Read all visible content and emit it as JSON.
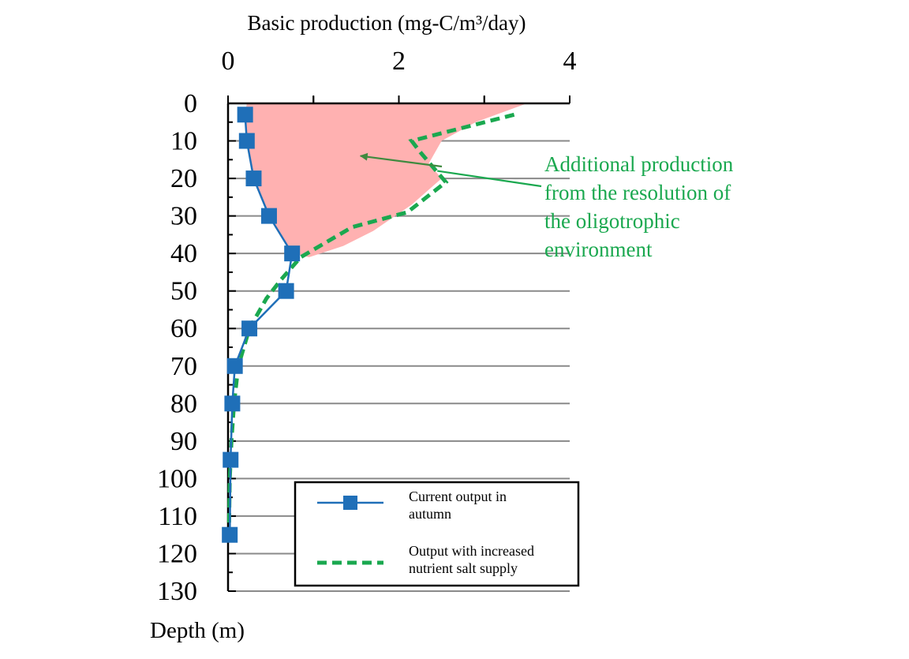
{
  "chart_data": {
    "type": "line",
    "title": "",
    "xlabel": "Basic production (mg-C/m³/day)",
    "ylabel": "Depth (m)",
    "x_axis_position": "top",
    "y_axis_inverted": true,
    "xlim": [
      0,
      4
    ],
    "ylim": [
      0,
      130
    ],
    "x_ticks": [
      "0",
      "2",
      "4"
    ],
    "y_ticks": [
      "0",
      "10",
      "20",
      "30",
      "40",
      "50",
      "60",
      "70",
      "80",
      "90",
      "100",
      "110",
      "120",
      "130"
    ],
    "grid": "horizontal",
    "colors": {
      "current": "#1f6fb8",
      "increased": "#1aa84f",
      "fill": "#ffb1b1",
      "annotation_arrow": "#3f8a3f"
    },
    "series": [
      {
        "name": "Current output in autumn",
        "style": "solid-square-markers",
        "points": [
          {
            "x": 0.2,
            "depth": 3
          },
          {
            "x": 0.22,
            "depth": 10
          },
          {
            "x": 0.3,
            "depth": 20
          },
          {
            "x": 0.48,
            "depth": 30
          },
          {
            "x": 0.75,
            "depth": 40
          },
          {
            "x": 0.68,
            "depth": 50
          },
          {
            "x": 0.25,
            "depth": 60
          },
          {
            "x": 0.08,
            "depth": 70
          },
          {
            "x": 0.05,
            "depth": 80
          },
          {
            "x": 0.03,
            "depth": 95
          },
          {
            "x": 0.02,
            "depth": 115
          }
        ]
      },
      {
        "name": "Output with increased nutrient salt supply",
        "style": "dashed",
        "points": [
          {
            "x": 3.35,
            "depth": 3
          },
          {
            "x": 2.15,
            "depth": 10
          },
          {
            "x": 2.25,
            "depth": 13
          },
          {
            "x": 2.55,
            "depth": 21
          },
          {
            "x": 2.1,
            "depth": 29
          },
          {
            "x": 1.45,
            "depth": 33
          },
          {
            "x": 0.85,
            "depth": 41
          },
          {
            "x": 0.62,
            "depth": 47
          },
          {
            "x": 0.45,
            "depth": 52
          },
          {
            "x": 0.25,
            "depth": 60
          },
          {
            "x": 0.12,
            "depth": 70
          },
          {
            "x": 0.07,
            "depth": 80
          },
          {
            "x": 0.04,
            "depth": 90
          },
          {
            "x": 0.02,
            "depth": 100
          },
          {
            "x": 0.01,
            "depth": 115
          }
        ]
      }
    ],
    "shaded_region_outline": [
      {
        "x": 0.22,
        "depth": 0
      },
      {
        "x": 3.5,
        "depth": 0
      },
      {
        "x": 2.9,
        "depth": 5
      },
      {
        "x": 2.5,
        "depth": 10
      },
      {
        "x": 2.35,
        "depth": 16
      },
      {
        "x": 2.5,
        "depth": 20
      },
      {
        "x": 2.15,
        "depth": 27
      },
      {
        "x": 1.7,
        "depth": 34
      },
      {
        "x": 1.35,
        "depth": 38
      },
      {
        "x": 0.95,
        "depth": 41
      },
      {
        "x": 0.75,
        "depth": 40
      },
      {
        "x": 0.48,
        "depth": 30
      },
      {
        "x": 0.3,
        "depth": 20
      },
      {
        "x": 0.22,
        "depth": 10
      },
      {
        "x": 0.2,
        "depth": 3
      }
    ],
    "annotation": {
      "lines": [
        "Additional production",
        "from the resolution of",
        "the oligotrophic",
        "environment"
      ],
      "arrow_to": {
        "x": 1.55,
        "depth": 14
      },
      "line_to": {
        "x": 2.45,
        "depth": 18
      }
    },
    "legend": {
      "position": "bottom-right",
      "entries": [
        {
          "lines": [
            "Current output in",
            "autumn"
          ]
        },
        {
          "lines": [
            "Output with increased",
            "nutrient salt supply"
          ]
        }
      ]
    }
  }
}
